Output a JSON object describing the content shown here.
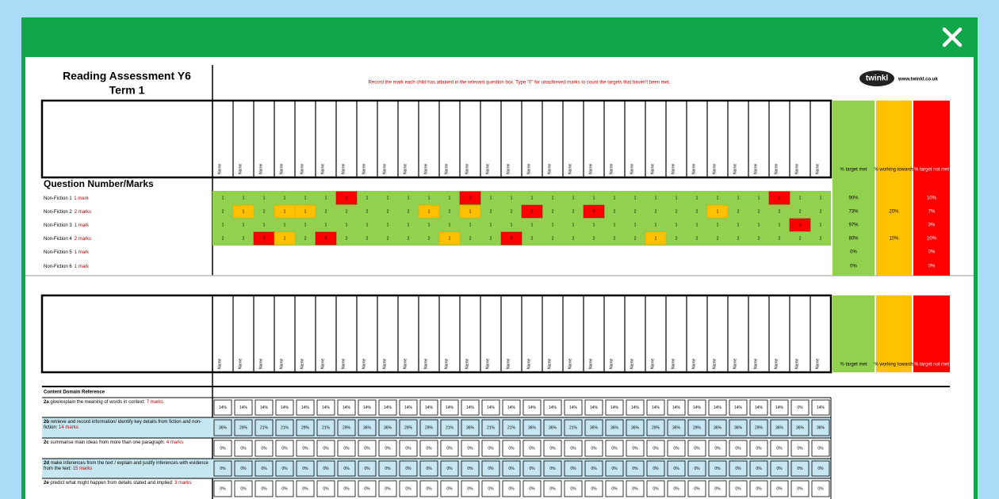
{
  "header": {
    "title_line1": "Reading Assessment Y6",
    "title_line2": "Term 1",
    "instruction": "Record the mark each child has attained in the relevant question box. Type \"0\" for unachieved marks to count the targets that haven't been met.",
    "logo": "twinkl",
    "website": "www.twinkl.co.uk"
  },
  "columns": [
    "Name",
    "Name",
    "Name",
    "Name",
    "Name",
    "Name",
    "Name",
    "Name",
    "Name",
    "Name",
    "Name",
    "Name",
    "Name",
    "Name",
    "Name",
    "Name",
    "Name",
    "Name",
    "Name",
    "Name",
    "Name",
    "Name",
    "Name",
    "Name",
    "Name",
    "Name",
    "Name",
    "Name",
    "Name",
    "Name"
  ],
  "summary_headers": [
    "% target met",
    "% working towards",
    "% target not met"
  ],
  "questions_heading": "Question Number/Marks",
  "questions": [
    {
      "label": "Non-Fiction 1",
      "marks": "1 mark",
      "scores": [
        1,
        1,
        1,
        1,
        1,
        1,
        0,
        1,
        1,
        1,
        1,
        1,
        0,
        1,
        1,
        1,
        1,
        1,
        1,
        1,
        1,
        1,
        1,
        1,
        1,
        1,
        1,
        0,
        1,
        1
      ],
      "summary": {
        "met": "90%",
        "not_met": "10%"
      }
    },
    {
      "label": "Non-Fiction 2",
      "marks": "2 marks",
      "scores": [
        2,
        1,
        2,
        1,
        1,
        2,
        2,
        2,
        2,
        2,
        1,
        2,
        1,
        2,
        2,
        0,
        2,
        2,
        0,
        2,
        2,
        2,
        2,
        2,
        1,
        2,
        2,
        2,
        2,
        2
      ],
      "summary": {
        "met": "73%",
        "towards": "20%",
        "not_met": "7%"
      }
    },
    {
      "label": "Non-Fiction 3",
      "marks": "1 mark",
      "scores": [
        1,
        1,
        1,
        1,
        1,
        1,
        1,
        1,
        1,
        1,
        1,
        1,
        1,
        1,
        1,
        1,
        1,
        1,
        1,
        1,
        1,
        1,
        1,
        1,
        1,
        1,
        1,
        1,
        0,
        1
      ],
      "summary": {
        "met": "97%",
        "not_met": "3%"
      }
    },
    {
      "label": "Non-Fiction 4",
      "marks": "2 marks",
      "scores": [
        2,
        2,
        0,
        1,
        2,
        0,
        2,
        2,
        2,
        2,
        2,
        1,
        2,
        2,
        0,
        2,
        2,
        2,
        2,
        2,
        2,
        1,
        2,
        2,
        2,
        2,
        2,
        2,
        2,
        2
      ],
      "summary": {
        "met": "80%",
        "towards": "10%",
        "not_met": "10%"
      }
    },
    {
      "label": "Non-Fiction 5",
      "marks": "1 mark",
      "summary": {
        "met": "0%",
        "not_met": "0%"
      }
    },
    {
      "label": "Non-Fiction 6",
      "marks": "1 mark",
      "summary": {
        "met": "0%",
        "not_met": "0%"
      }
    }
  ],
  "domain_heading": "Content Domain Reference",
  "domains": [
    {
      "code": "2a",
      "text": "give/explain the meaning of words in context:",
      "marks": "7 marks",
      "values": [
        "14%",
        "14%",
        "14%",
        "14%",
        "14%",
        "14%",
        "14%",
        "14%",
        "14%",
        "14%",
        "14%",
        "14%",
        "14%",
        "14%",
        "14%",
        "14%",
        "14%",
        "14%",
        "14%",
        "14%",
        "14%",
        "14%",
        "14%",
        "14%",
        "14%",
        "14%",
        "14%",
        "14%",
        "0%",
        "14%"
      ]
    },
    {
      "code": "2b",
      "text": "retrieve and record information/ identify key details from fiction and non-fiction:",
      "marks": "14 marks",
      "values": [
        "36%",
        "29%",
        "21%",
        "21%",
        "29%",
        "21%",
        "29%",
        "36%",
        "36%",
        "29%",
        "29%",
        "21%",
        "36%",
        "21%",
        "21%",
        "36%",
        "36%",
        "21%",
        "36%",
        "36%",
        "36%",
        "29%",
        "36%",
        "29%",
        "36%",
        "36%",
        "29%",
        "36%",
        "36%",
        "36%"
      ]
    },
    {
      "code": "2c",
      "text": "summarise main ideas from more than one paragraph:",
      "marks": "4 marks",
      "values": [
        "0%",
        "0%",
        "0%",
        "0%",
        "0%",
        "0%",
        "0%",
        "0%",
        "0%",
        "0%",
        "0%",
        "0%",
        "0%",
        "0%",
        "0%",
        "0%",
        "0%",
        "0%",
        "0%",
        "0%",
        "0%",
        "0%",
        "0%",
        "0%",
        "0%",
        "0%",
        "0%",
        "0%",
        "0%",
        "0%"
      ]
    },
    {
      "code": "2d",
      "text": "make inferences from the text / explain and justify inferences with evidence from the text:",
      "marks": "15 marks",
      "values": [
        "0%",
        "0%",
        "0%",
        "0%",
        "0%",
        "0%",
        "0%",
        "0%",
        "0%",
        "0%",
        "0%",
        "0%",
        "0%",
        "0%",
        "0%",
        "0%",
        "0%",
        "0%",
        "0%",
        "0%",
        "0%",
        "0%",
        "0%",
        "0%",
        "0%",
        "0%",
        "0%",
        "0%",
        "0%",
        "0%"
      ]
    },
    {
      "code": "2e",
      "text": "predict what might happen from details stated and implied:",
      "marks": "3 marks",
      "values": [
        "0%",
        "0%",
        "0%",
        "0%",
        "0%",
        "0%",
        "0%",
        "0%",
        "0%",
        "0%",
        "0%",
        "0%",
        "0%",
        "0%",
        "0%",
        "0%",
        "0%",
        "0%",
        "0%",
        "0%",
        "0%",
        "0%",
        "0%",
        "0%",
        "0%",
        "0%",
        "0%",
        "0%",
        "0%",
        "0%"
      ]
    }
  ]
}
